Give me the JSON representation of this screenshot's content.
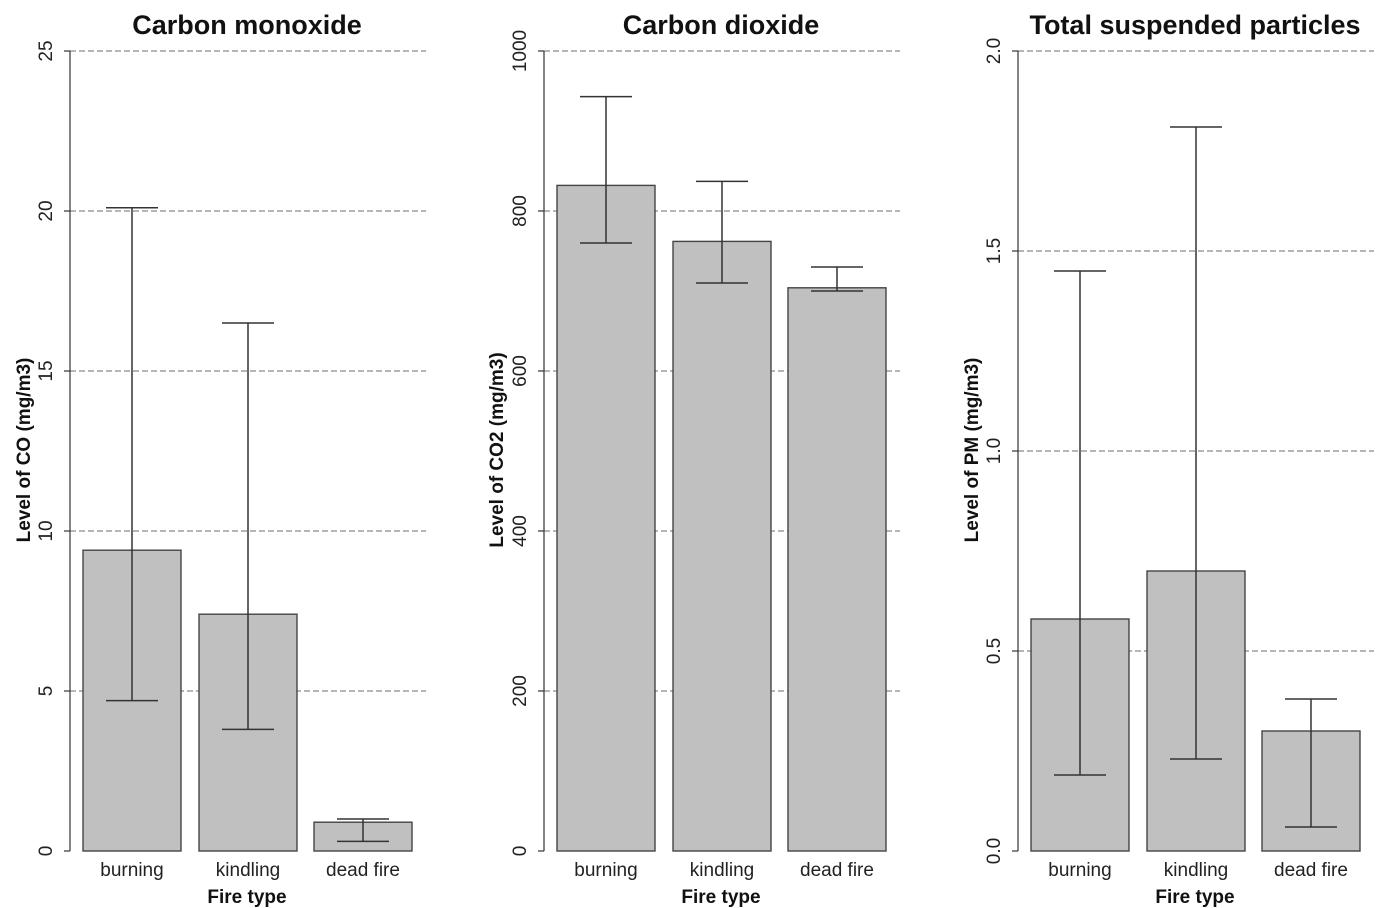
{
  "chart_data": [
    {
      "type": "bar",
      "title": "Carbon monoxide",
      "xlabel": "Fire type",
      "ylabel": "Level of CO (mg/m3)",
      "categories": [
        "burning",
        "kindling",
        "dead fire"
      ],
      "values": [
        9.4,
        7.4,
        0.9
      ],
      "error_low": [
        4.7,
        3.8,
        0.3
      ],
      "error_high": [
        20.1,
        16.5,
        1.0
      ],
      "ylim": [
        0,
        25
      ],
      "yticks": [
        "0",
        "5",
        "10",
        "15",
        "20",
        "25"
      ],
      "ytick_values": [
        0,
        5,
        10,
        15,
        20,
        25
      ],
      "grid": true,
      "colors": {
        "bar": "#c0c0c0",
        "edge": "#444444",
        "grid": "#8a8a8a"
      }
    },
    {
      "type": "bar",
      "title": "Carbon dioxide",
      "xlabel": "Fire type",
      "ylabel": "Level of CO2 (mg/m3)",
      "categories": [
        "burning",
        "kindling",
        "dead fire"
      ],
      "values": [
        832,
        762,
        704
      ],
      "error_low": [
        760,
        710,
        700
      ],
      "error_high": [
        943,
        837,
        730
      ],
      "ylim": [
        0,
        1000
      ],
      "yticks": [
        "0",
        "200",
        "400",
        "600",
        "800",
        "1000"
      ],
      "ytick_values": [
        0,
        200,
        400,
        600,
        800,
        1000
      ],
      "grid": true,
      "colors": {
        "bar": "#c0c0c0",
        "edge": "#444444",
        "grid": "#8a8a8a"
      }
    },
    {
      "type": "bar",
      "title": "Total suspended particles",
      "xlabel": "Fire type",
      "ylabel": "Level of PM (mg/m3)",
      "categories": [
        "burning",
        "kindling",
        "dead fire"
      ],
      "values": [
        0.58,
        0.7,
        0.3
      ],
      "error_low": [
        0.19,
        0.23,
        0.06
      ],
      "error_high": [
        1.45,
        1.81,
        0.38
      ],
      "ylim": [
        0,
        2
      ],
      "yticks": [
        "0.0",
        "0.5",
        "1.0",
        "1.5",
        "2.0"
      ],
      "ytick_values": [
        0,
        0.5,
        1.0,
        1.5,
        2.0
      ],
      "grid": true,
      "colors": {
        "bar": "#c0c0c0",
        "edge": "#444444",
        "grid": "#8a8a8a"
      }
    }
  ]
}
